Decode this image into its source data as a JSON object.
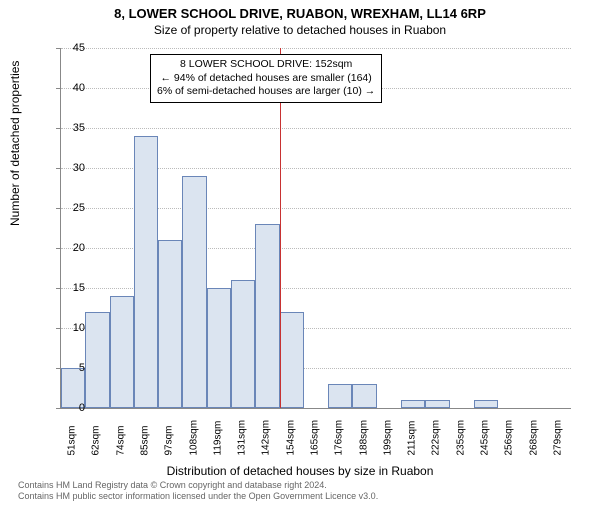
{
  "title_main": "8, LOWER SCHOOL DRIVE, RUABON, WREXHAM, LL14 6RP",
  "title_sub": "Size of property relative to detached houses in Ruabon",
  "y_axis_label": "Number of detached properties",
  "x_axis_label": "Distribution of detached houses by size in Ruabon",
  "footer_line1": "Contains HM Land Registry data © Crown copyright and database right 2024.",
  "footer_line2": "Contains HM public sector information licensed under the Open Government Licence v3.0.",
  "chart": {
    "type": "histogram",
    "ylim": [
      0,
      45
    ],
    "ytick_step": 5,
    "bar_fill": "#dbe4f0",
    "bar_stroke": "#6a86b8",
    "grid_color": "#bbbbbb",
    "axis_color": "#888888",
    "marker_color": "#c83232",
    "x_categories": [
      "51sqm",
      "62sqm",
      "74sqm",
      "85sqm",
      "97sqm",
      "108sqm",
      "119sqm",
      "131sqm",
      "142sqm",
      "154sqm",
      "165sqm",
      "176sqm",
      "188sqm",
      "199sqm",
      "211sqm",
      "222sqm",
      "235sqm",
      "245sqm",
      "256sqm",
      "268sqm",
      "279sqm"
    ],
    "values": [
      5,
      12,
      14,
      34,
      21,
      29,
      15,
      16,
      23,
      12,
      0,
      3,
      3,
      0,
      1,
      1,
      0,
      1,
      0,
      0,
      0
    ],
    "marker_index": 9
  },
  "info_box": {
    "line1": "8 LOWER SCHOOL DRIVE: 152sqm",
    "line2": "← 94% of detached houses are smaller (164)",
    "line3": "6% of semi-detached houses are larger (10) →"
  }
}
